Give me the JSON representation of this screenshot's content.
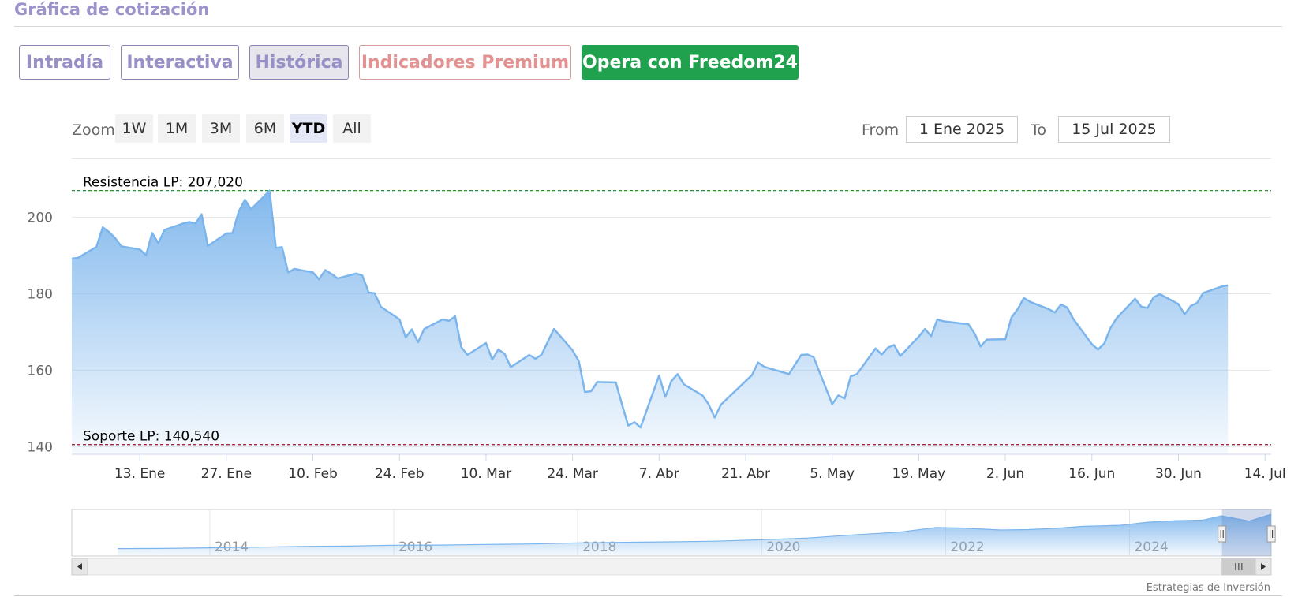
{
  "title": "Gráfica de cotización",
  "tabs": [
    {
      "label": "Intradía"
    },
    {
      "label": "Interactiva"
    },
    {
      "label": "Histórica"
    },
    {
      "label": "Indicadores Premium"
    },
    {
      "label": "Opera con Freedom24"
    }
  ],
  "zoom": {
    "label": "Zoom",
    "options": [
      "1W",
      "1M",
      "3M",
      "6M",
      "YTD",
      "All"
    ],
    "selected": "YTD"
  },
  "range": {
    "from_label": "From",
    "from_value": "1 Ene 2025",
    "to_label": "To",
    "to_value": "15 Jul 2025"
  },
  "credit": "Estrategias de Inversión",
  "colors": {
    "line": "#7cb5ec",
    "resistance": "#2e8b2e",
    "support": "#a0283c",
    "accent": "#1fa14e"
  },
  "chart_data": {
    "type": "area",
    "title": "",
    "ylim": [
      138,
      209
    ],
    "yticks": [
      140,
      160,
      180,
      200
    ],
    "xlim": [
      "2025-01-02",
      "2025-07-15"
    ],
    "xticks": [
      {
        "date": "2025-01-13",
        "label": "13. Ene"
      },
      {
        "date": "2025-01-27",
        "label": "27. Ene"
      },
      {
        "date": "2025-02-10",
        "label": "10. Feb"
      },
      {
        "date": "2025-02-24",
        "label": "24. Feb"
      },
      {
        "date": "2025-03-10",
        "label": "10. Mar"
      },
      {
        "date": "2025-03-24",
        "label": "24. Mar"
      },
      {
        "date": "2025-04-07",
        "label": "7. Abr"
      },
      {
        "date": "2025-04-21",
        "label": "21. Abr"
      },
      {
        "date": "2025-05-05",
        "label": "5. May"
      },
      {
        "date": "2025-05-19",
        "label": "19. May"
      },
      {
        "date": "2025-06-02",
        "label": "2. Jun"
      },
      {
        "date": "2025-06-16",
        "label": "16. Jun"
      },
      {
        "date": "2025-06-30",
        "label": "30. Jun"
      },
      {
        "date": "2025-07-14",
        "label": "14. Jul"
      }
    ],
    "series": [
      {
        "values": [
          [
            "2025-01-02",
            189.2
          ],
          [
            "2025-01-03",
            189.4
          ],
          [
            "2025-01-06",
            192.3
          ],
          [
            "2025-01-07",
            197.4
          ],
          [
            "2025-01-08",
            196.2
          ],
          [
            "2025-01-09",
            194.6
          ],
          [
            "2025-01-10",
            192.4
          ],
          [
            "2025-01-13",
            191.6
          ],
          [
            "2025-01-14",
            190.1
          ],
          [
            "2025-01-15",
            195.9
          ],
          [
            "2025-01-16",
            193.2
          ],
          [
            "2025-01-17",
            196.7
          ],
          [
            "2025-01-20",
            198.4
          ],
          [
            "2025-01-21",
            198.8
          ],
          [
            "2025-01-22",
            198.4
          ],
          [
            "2025-01-23",
            200.8
          ],
          [
            "2025-01-24",
            192.5
          ],
          [
            "2025-01-27",
            195.8
          ],
          [
            "2025-01-28",
            195.9
          ],
          [
            "2025-01-29",
            201.5
          ],
          [
            "2025-01-30",
            204.6
          ],
          [
            "2025-01-31",
            202.1
          ],
          [
            "2025-02-03",
            207.0
          ],
          [
            "2025-02-04",
            192.0
          ],
          [
            "2025-02-05",
            192.2
          ],
          [
            "2025-02-06",
            185.6
          ],
          [
            "2025-02-07",
            186.5
          ],
          [
            "2025-02-10",
            185.6
          ],
          [
            "2025-02-11",
            183.8
          ],
          [
            "2025-02-12",
            186.2
          ],
          [
            "2025-02-13",
            185.2
          ],
          [
            "2025-02-14",
            184.0
          ],
          [
            "2025-02-17",
            185.3
          ],
          [
            "2025-02-18",
            184.8
          ],
          [
            "2025-02-19",
            180.4
          ],
          [
            "2025-02-20",
            180.1
          ],
          [
            "2025-02-21",
            176.6
          ],
          [
            "2025-02-24",
            173.3
          ],
          [
            "2025-02-25",
            168.6
          ],
          [
            "2025-02-26",
            170.7
          ],
          [
            "2025-02-27",
            167.3
          ],
          [
            "2025-02-28",
            170.8
          ],
          [
            "2025-03-03",
            173.3
          ],
          [
            "2025-03-04",
            172.9
          ],
          [
            "2025-03-05",
            174.1
          ],
          [
            "2025-03-06",
            166.0
          ],
          [
            "2025-03-07",
            164.0
          ],
          [
            "2025-03-10",
            167.1
          ],
          [
            "2025-03-11",
            162.8
          ],
          [
            "2025-03-12",
            165.4
          ],
          [
            "2025-03-13",
            164.3
          ],
          [
            "2025-03-14",
            160.8
          ],
          [
            "2025-03-17",
            164.0
          ],
          [
            "2025-03-18",
            163.0
          ],
          [
            "2025-03-19",
            164.1
          ],
          [
            "2025-03-20",
            167.5
          ],
          [
            "2025-03-21",
            170.8
          ],
          [
            "2025-03-24",
            165.2
          ],
          [
            "2025-03-25",
            162.4
          ],
          [
            "2025-03-26",
            154.3
          ],
          [
            "2025-03-27",
            154.5
          ],
          [
            "2025-03-28",
            156.9
          ],
          [
            "2025-03-31",
            156.8
          ],
          [
            "2025-04-01",
            151.0
          ],
          [
            "2025-04-02",
            145.5
          ],
          [
            "2025-04-03",
            146.4
          ],
          [
            "2025-04-04",
            145.0
          ],
          [
            "2025-04-07",
            158.6
          ],
          [
            "2025-04-08",
            153.0
          ],
          [
            "2025-04-09",
            157.2
          ],
          [
            "2025-04-10",
            159.0
          ],
          [
            "2025-04-11",
            156.3
          ],
          [
            "2025-04-14",
            153.4
          ],
          [
            "2025-04-15",
            151.1
          ],
          [
            "2025-04-16",
            147.6
          ],
          [
            "2025-04-17",
            151.0
          ],
          [
            "2025-04-22",
            158.7
          ],
          [
            "2025-04-23",
            162.0
          ],
          [
            "2025-04-24",
            160.9
          ],
          [
            "2025-04-25",
            160.4
          ],
          [
            "2025-04-28",
            159.0
          ],
          [
            "2025-04-29",
            161.5
          ],
          [
            "2025-04-30",
            164.0
          ],
          [
            "2025-05-01",
            164.1
          ],
          [
            "2025-05-02",
            163.4
          ],
          [
            "2025-05-05",
            151.1
          ],
          [
            "2025-05-06",
            153.4
          ],
          [
            "2025-05-07",
            152.6
          ],
          [
            "2025-05-08",
            158.4
          ],
          [
            "2025-05-09",
            159.0
          ],
          [
            "2025-05-12",
            165.7
          ],
          [
            "2025-05-13",
            164.1
          ],
          [
            "2025-05-14",
            165.9
          ],
          [
            "2025-05-15",
            166.6
          ],
          [
            "2025-05-16",
            163.7
          ],
          [
            "2025-05-19",
            168.8
          ],
          [
            "2025-05-20",
            170.8
          ],
          [
            "2025-05-21",
            168.9
          ],
          [
            "2025-05-22",
            173.3
          ],
          [
            "2025-05-23",
            172.8
          ],
          [
            "2025-05-26",
            172.2
          ],
          [
            "2025-05-27",
            172.1
          ],
          [
            "2025-05-28",
            169.7
          ],
          [
            "2025-05-29",
            166.2
          ],
          [
            "2025-05-30",
            168.0
          ],
          [
            "2025-06-02",
            168.1
          ],
          [
            "2025-06-03",
            173.8
          ],
          [
            "2025-06-04",
            176.0
          ],
          [
            "2025-06-05",
            178.9
          ],
          [
            "2025-06-06",
            177.9
          ],
          [
            "2025-06-09",
            176.0
          ],
          [
            "2025-06-10",
            175.1
          ],
          [
            "2025-06-11",
            177.2
          ],
          [
            "2025-06-12",
            176.4
          ],
          [
            "2025-06-13",
            173.4
          ],
          [
            "2025-06-16",
            166.8
          ],
          [
            "2025-06-17",
            165.4
          ],
          [
            "2025-06-18",
            167.0
          ],
          [
            "2025-06-19",
            171.0
          ],
          [
            "2025-06-20",
            173.6
          ],
          [
            "2025-06-23",
            178.7
          ],
          [
            "2025-06-24",
            176.6
          ],
          [
            "2025-06-25",
            176.3
          ],
          [
            "2025-06-26",
            179.1
          ],
          [
            "2025-06-27",
            179.9
          ],
          [
            "2025-06-30",
            177.3
          ],
          [
            "2025-07-01",
            174.6
          ],
          [
            "2025-07-02",
            176.8
          ],
          [
            "2025-07-03",
            177.6
          ],
          [
            "2025-07-04",
            180.2
          ],
          [
            "2025-07-07",
            181.9
          ],
          [
            "2025-07-08",
            182.2
          ]
        ]
      }
    ],
    "annotations": [
      {
        "label": "Resistencia LP: 207,020",
        "value": 207.02,
        "type": "resistance"
      },
      {
        "label": "Soporte LP: 140,540",
        "value": 140.54,
        "type": "support"
      }
    ],
    "navigator": {
      "type": "area",
      "xticks": [
        "2014",
        "2016",
        "2018",
        "2020",
        "2022",
        "2024"
      ],
      "years": [
        [
          2013.0,
          20
        ],
        [
          2013.5,
          21
        ],
        [
          2014.0,
          24
        ],
        [
          2014.5,
          27
        ],
        [
          2015.0,
          30
        ],
        [
          2015.5,
          32
        ],
        [
          2016.0,
          36
        ],
        [
          2016.5,
          37
        ],
        [
          2017.0,
          40
        ],
        [
          2017.5,
          42
        ],
        [
          2018.0,
          47
        ],
        [
          2018.5,
          50
        ],
        [
          2019.0,
          52
        ],
        [
          2019.5,
          55
        ],
        [
          2020.0,
          62
        ],
        [
          2020.5,
          70
        ],
        [
          2021.0,
          85
        ],
        [
          2021.5,
          98
        ],
        [
          2021.9,
          120
        ],
        [
          2022.2,
          117
        ],
        [
          2022.6,
          108
        ],
        [
          2022.9,
          110
        ],
        [
          2023.2,
          116
        ],
        [
          2023.5,
          125
        ],
        [
          2023.9,
          130
        ],
        [
          2024.2,
          145
        ],
        [
          2024.5,
          152
        ],
        [
          2024.8,
          155
        ],
        [
          2025.0,
          175
        ],
        [
          2025.3,
          150
        ],
        [
          2025.54,
          182
        ]
      ],
      "selection": [
        "2025-01-02",
        "2025-07-15"
      ]
    }
  }
}
